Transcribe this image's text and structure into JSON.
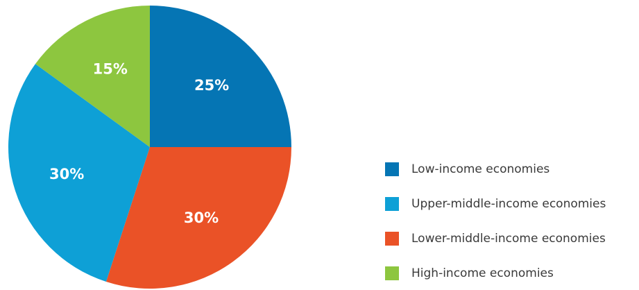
{
  "chart_data": {
    "type": "pie",
    "title": "",
    "categories": [
      "Low-income economies",
      "Lower-middle-income economies",
      "Upper-middle-income economies",
      "High-income economies"
    ],
    "values": [
      25,
      30,
      30,
      15
    ],
    "value_labels": [
      "25%",
      "30%",
      "30%",
      "15%"
    ],
    "colors": [
      "#0575b4",
      "#ea5227",
      "#0ea0d6",
      "#8dc63f"
    ],
    "start_angle_deg": 0,
    "direction": "clockwise",
    "legend": {
      "placement": "right",
      "entries": [
        {
          "label": "Low-income economies",
          "color": "#0575b4"
        },
        {
          "label": "Upper-middle-income economies",
          "color": "#0ea0d6"
        },
        {
          "label": "Lower-middle-income economies",
          "color": "#ea5227"
        },
        {
          "label": "High-income economies",
          "color": "#8dc63f"
        }
      ]
    }
  }
}
